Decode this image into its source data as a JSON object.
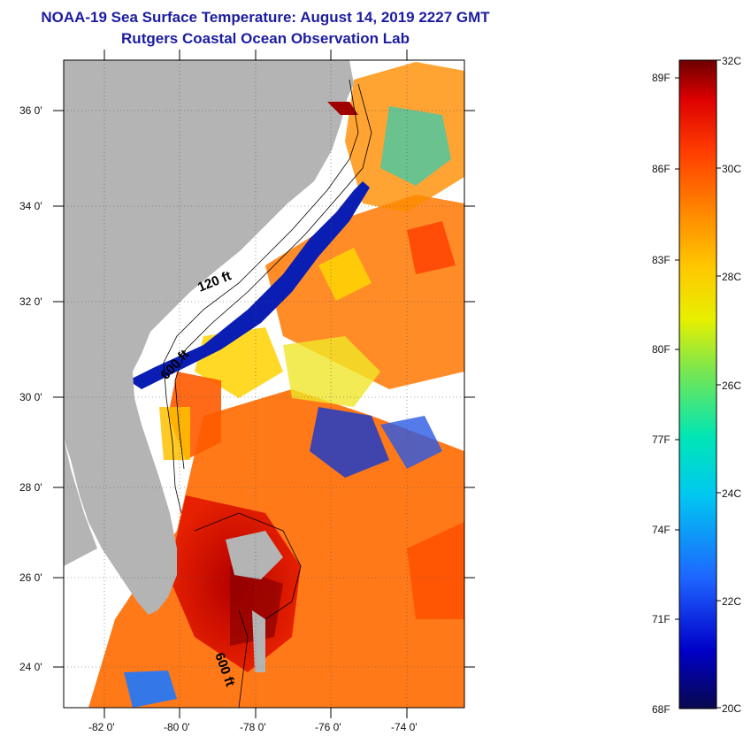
{
  "header": {
    "title": "NOAA-19 Sea Surface Temperature:  August 14, 2019 2227 GMT",
    "subtitle": "Rutgers Coastal Ocean Observation Lab"
  },
  "map": {
    "lat_labels": [
      "36 0'",
      "34 0'",
      "32 0'",
      "30 0'",
      "28 0'",
      "26 0'",
      "24 0'"
    ],
    "lon_labels": [
      "-82 0'",
      "-80 0'",
      "-78 0'",
      "-76 0'",
      "-74 0'"
    ],
    "contour_labels": [
      "120 ft",
      "600 ft",
      "600 ft"
    ],
    "colors": {
      "land": "#b4b4b4",
      "clouds": "#ffffff",
      "frame": "#000000"
    }
  },
  "colorbar": {
    "f_labels": [
      "89F",
      "86F",
      "83F",
      "80F",
      "77F",
      "74F",
      "71F",
      "68F"
    ],
    "c_labels": [
      "32C",
      "30C",
      "28C",
      "26C",
      "24C",
      "22C",
      "20C"
    ],
    "range_c": [
      20,
      32
    ],
    "gradient": [
      "#08084e",
      "#0000c8",
      "#1e64ff",
      "#00c8f0",
      "#00e6b4",
      "#78e650",
      "#e6f000",
      "#ffc800",
      "#ff8c00",
      "#ff3c00",
      "#dc0000",
      "#6e0000"
    ]
  }
}
